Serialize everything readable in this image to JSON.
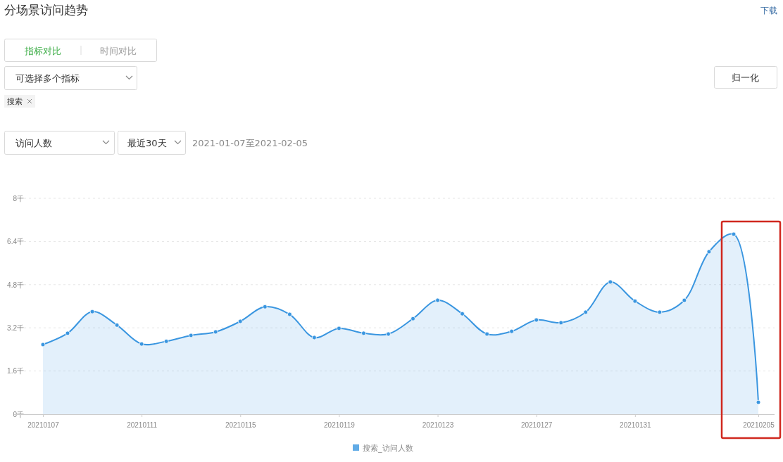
{
  "chart_data": {
    "type": "area",
    "title": "分场景访问趋势",
    "categories": [
      "20210107",
      null,
      null,
      null,
      "20210111",
      null,
      null,
      null,
      "20210115",
      null,
      null,
      null,
      "20210119",
      null,
      null,
      null,
      "20210123",
      null,
      null,
      null,
      "20210127",
      null,
      null,
      null,
      "20210131",
      null,
      null,
      null,
      null,
      "20210205"
    ],
    "series": [
      {
        "name": "搜索_访问人数",
        "color": "#3a96e0",
        "values": [
          2.58,
          3.0,
          3.8,
          3.3,
          2.6,
          2.7,
          2.92,
          3.05,
          3.44,
          3.98,
          3.7,
          2.84,
          3.18,
          3.0,
          2.97,
          3.54,
          4.22,
          3.72,
          2.97,
          3.07,
          3.49,
          3.39,
          3.78,
          4.9,
          4.19,
          3.78,
          4.22,
          6.02,
          6.67,
          0.44
        ]
      }
    ],
    "ylim": [
      0,
      8
    ],
    "yticks": [
      {
        "value": 0,
        "label": "0千"
      },
      {
        "value": 1.6,
        "label": "1.6千"
      },
      {
        "value": 3.2,
        "label": "3.2千"
      },
      {
        "value": 4.8,
        "label": "4.8千"
      },
      {
        "value": 6.4,
        "label": "6.4千"
      },
      {
        "value": 8,
        "label": "8千"
      }
    ],
    "grid": "y",
    "legend": "bottom",
    "marker": "circle",
    "annotations": [
      "下载",
      "指标对比",
      "时间对比",
      "可选择多个指标",
      "归一化",
      "搜索",
      "访问人数",
      "最近30天",
      "2021-01-07至2021-02-05"
    ]
  }
}
